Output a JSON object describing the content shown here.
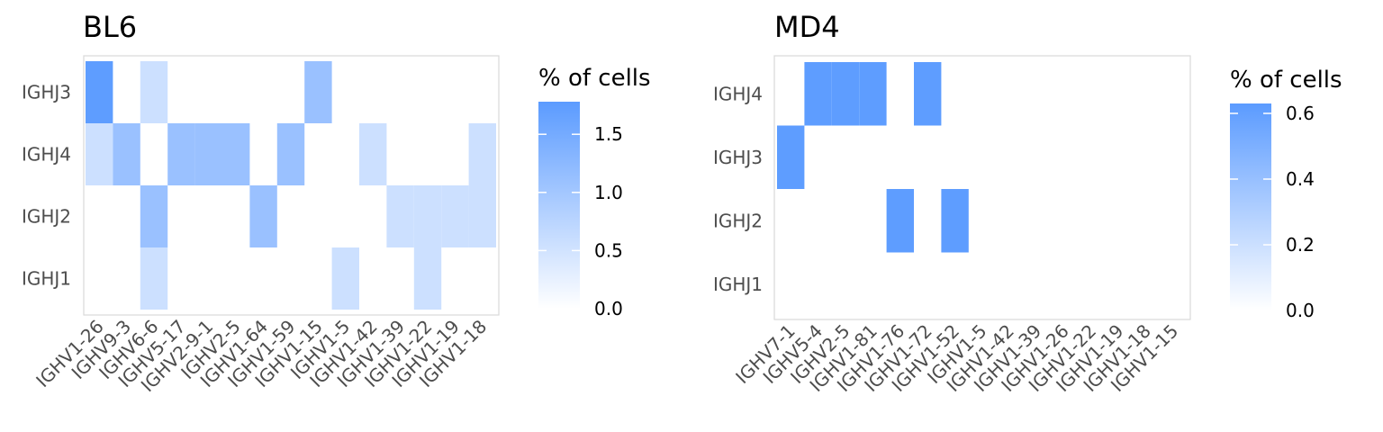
{
  "chart_data": [
    {
      "type": "heatmap",
      "title": "BL6",
      "x_categories": [
        "IGHV1-26",
        "IGHV9-3",
        "IGHV6-6",
        "IGHV5-17",
        "IGHV2-9-1",
        "IGHV2-5",
        "IGHV1-64",
        "IGHV1-59",
        "IGHV1-15",
        "IGHV1-5",
        "IGHV1-42",
        "IGHV1-39",
        "IGHV1-22",
        "IGHV1-19",
        "IGHV1-18"
      ],
      "y_categories": [
        "IGHJ3",
        "IGHJ4",
        "IGHJ2",
        "IGHJ1"
      ],
      "cells": [
        {
          "x": "IGHV1-26",
          "y": "IGHJ3",
          "value": 1.75
        },
        {
          "x": "IGHV6-6",
          "y": "IGHJ3",
          "value": 0.55
        },
        {
          "x": "IGHV1-15",
          "y": "IGHJ3",
          "value": 1.1
        },
        {
          "x": "IGHV1-26",
          "y": "IGHJ4",
          "value": 0.55
        },
        {
          "x": "IGHV9-3",
          "y": "IGHJ4",
          "value": 1.1
        },
        {
          "x": "IGHV5-17",
          "y": "IGHJ4",
          "value": 1.1
        },
        {
          "x": "IGHV2-9-1",
          "y": "IGHJ4",
          "value": 1.1
        },
        {
          "x": "IGHV2-5",
          "y": "IGHJ4",
          "value": 1.1
        },
        {
          "x": "IGHV1-59",
          "y": "IGHJ4",
          "value": 1.1
        },
        {
          "x": "IGHV1-42",
          "y": "IGHJ4",
          "value": 0.55
        },
        {
          "x": "IGHV1-18",
          "y": "IGHJ4",
          "value": 0.55
        },
        {
          "x": "IGHV6-6",
          "y": "IGHJ2",
          "value": 1.1
        },
        {
          "x": "IGHV1-64",
          "y": "IGHJ2",
          "value": 1.1
        },
        {
          "x": "IGHV1-39",
          "y": "IGHJ2",
          "value": 0.55
        },
        {
          "x": "IGHV1-22",
          "y": "IGHJ2",
          "value": 0.55
        },
        {
          "x": "IGHV1-19",
          "y": "IGHJ2",
          "value": 0.55
        },
        {
          "x": "IGHV1-18",
          "y": "IGHJ2",
          "value": 0.55
        },
        {
          "x": "IGHV6-6",
          "y": "IGHJ1",
          "value": 0.55
        },
        {
          "x": "IGHV1-5",
          "y": "IGHJ1",
          "value": 0.55
        },
        {
          "x": "IGHV1-22",
          "y": "IGHJ1",
          "value": 0.55
        }
      ],
      "legend": {
        "title": "% of cells",
        "ticks": [
          0.0,
          0.5,
          1.0,
          1.5
        ],
        "tick_labels": [
          "0.0",
          "0.5",
          "1.0",
          "1.5"
        ],
        "range": [
          0,
          1.78
        ]
      }
    },
    {
      "type": "heatmap",
      "title": "MD4",
      "x_categories": [
        "IGHV7-1",
        "IGHV5-4",
        "IGHV2-5",
        "IGHV1-81",
        "IGHV1-76",
        "IGHV1-72",
        "IGHV1-52",
        "IGHV1-5",
        "IGHV1-42",
        "IGHV1-39",
        "IGHV1-26",
        "IGHV1-22",
        "IGHV1-19",
        "IGHV1-18",
        "IGHV1-15"
      ],
      "y_categories": [
        "IGHJ4",
        "IGHJ3",
        "IGHJ2",
        "IGHJ1"
      ],
      "cells": [
        {
          "x": "IGHV5-4",
          "y": "IGHJ4",
          "value": 0.62
        },
        {
          "x": "IGHV2-5",
          "y": "IGHJ4",
          "value": 0.62
        },
        {
          "x": "IGHV1-81",
          "y": "IGHJ4",
          "value": 0.62
        },
        {
          "x": "IGHV1-72",
          "y": "IGHJ4",
          "value": 0.62
        },
        {
          "x": "IGHV7-1",
          "y": "IGHJ3",
          "value": 0.62
        },
        {
          "x": "IGHV1-76",
          "y": "IGHJ2",
          "value": 0.62
        },
        {
          "x": "IGHV1-52",
          "y": "IGHJ2",
          "value": 0.62
        }
      ],
      "legend": {
        "title": "% of cells",
        "ticks": [
          0.0,
          0.2,
          0.4,
          0.6
        ],
        "tick_labels": [
          "0.0",
          "0.2",
          "0.4",
          "0.6"
        ],
        "range": [
          0,
          0.63
        ]
      }
    }
  ],
  "colors": {
    "low": "#ffffff",
    "high": "#5b9bff",
    "panel_border": "#d9d9d9"
  }
}
